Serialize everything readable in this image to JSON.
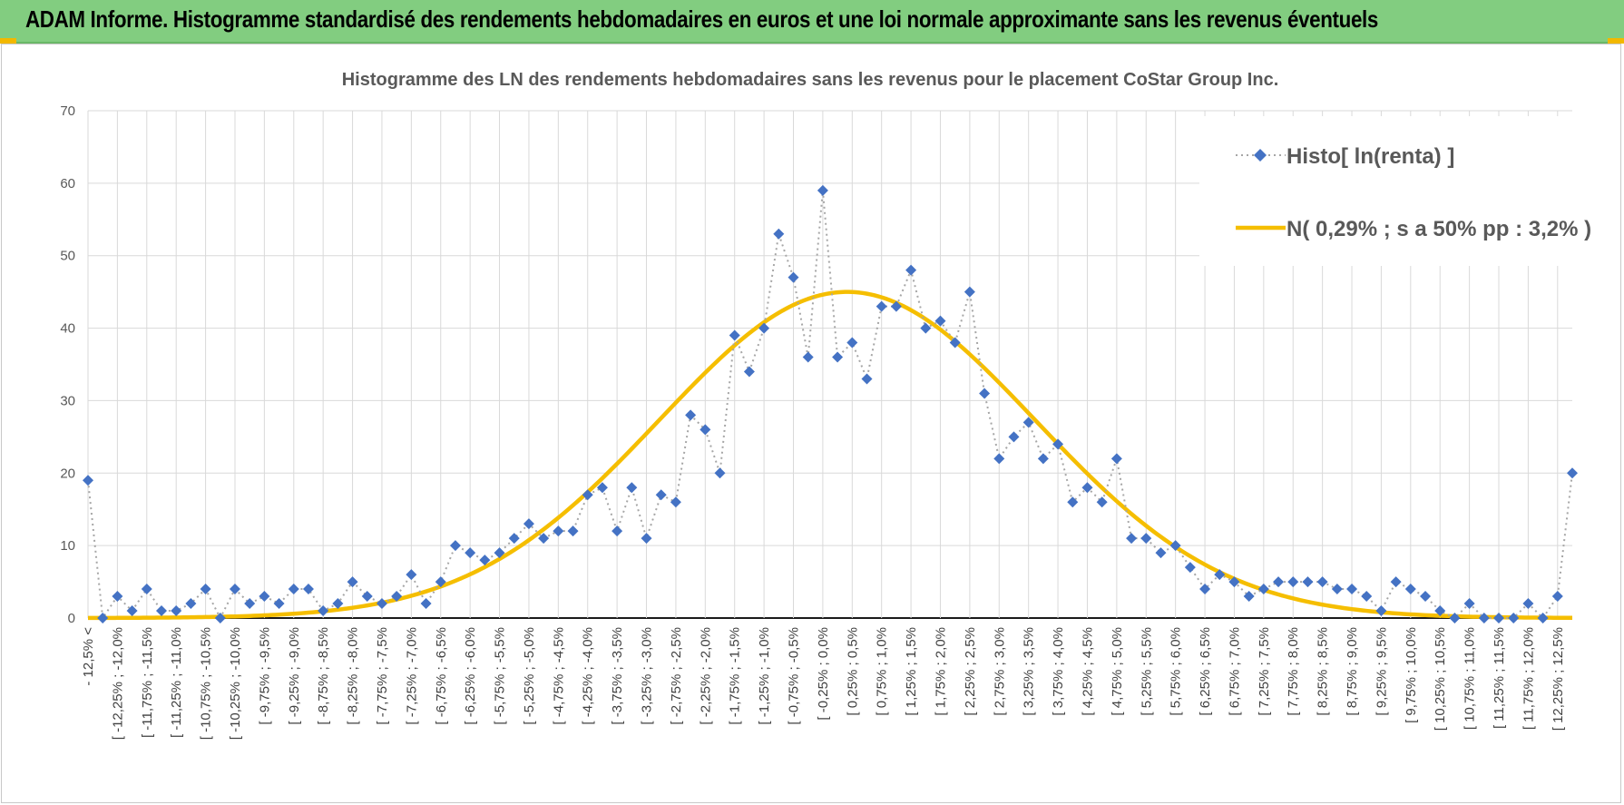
{
  "banner": {
    "title": "ADAM Informe. Histogramme standardisé des rendements hebdomadaires en euros et une loi normale approximante sans les revenus éventuels",
    "background": "#82cd80",
    "accent": "#f2b800"
  },
  "chart_data": {
    "type": "line",
    "title": "Histogramme  des LN des rendements  hebdomadaires  sans les  revenus  pour le placement CoStar Group Inc.",
    "xlabel": "",
    "ylabel": "",
    "ylim": [
      0,
      70
    ],
    "yticks": [
      0,
      10,
      20,
      30,
      40,
      50,
      60,
      70
    ],
    "grid": true,
    "legend_position": "top-right",
    "categories": [
      "- 12,5% <",
      "[ -12,5% ; -12,25% ]",
      "[ -12,25% ; -12,0%",
      "[ -12,0% ; -11,75% ]",
      "[ -11,75% ; -11,5%",
      "[ -11,5% ; -11,25% ]",
      "[ -11,25% ; -11,0%",
      "[ -11,0% ; -10,75% ]",
      "[ -10,75% ; -10,5%",
      "[ -10,5% ; -10,25% ]",
      "[ -10,25% ; -10,0%",
      "[ -10,0% ; -9,75% ]",
      "[ -9,75% ; -9,5%",
      "[ -9,5% ; -9,25% ]",
      "[ -9,25% ; -9,0%",
      "[ -9,0% ; -8,75% ]",
      "[ -8,75% ; -8,5%",
      "[ -8,5% ; -8,25% ]",
      "[ -8,25% ; -8,0%",
      "[ -8,0% ; -7,75% ]",
      "[ -7,75% ; -7,5%",
      "[ -7,5% ; -7,25% ]",
      "[ -7,25% ; -7,0%",
      "[ -7,0% ; -6,75% ]",
      "[ -6,75% ; -6,5%",
      "[ -6,5% ; -6,25% ]",
      "[ -6,25% ; -6,0%",
      "[ -6,0% ; -5,75% ]",
      "[ -5,75% ; -5,5%",
      "[ -5,5% ; -5,25% ]",
      "[ -5,25% ; -5,0%",
      "[ -5,0% ; -4,75% ]",
      "[ -4,75% ; -4,5%",
      "[ -4,5% ; -4,25% ]",
      "[ -4,25% ; -4,0%",
      "[ -4,0% ; -3,75% ]",
      "[ -3,75% ; -3,5%",
      "[ -3,5% ; -3,25% ]",
      "[ -3,25% ; -3,0%",
      "[ -3,0% ; -2,75% ]",
      "[ -2,75% ; -2,5%",
      "[ -2,5% ; -2,25% ]",
      "[ -2,25% ; -2,0%",
      "[ -2,0% ; -1,75% ]",
      "[ -1,75% ; -1,5%",
      "[ -1,5% ; -1,25% ]",
      "[ -1,25% ; -1,0%",
      "[ -1,0% ; -0,75% ]",
      "[ -0,75% ; -0,5%",
      "[ -0,5% ; -0,25% ]",
      "[ -0,25% ; 0,0%",
      "[ 0,0% ; 0,25% ]",
      "[ 0,25% ; 0,5%",
      "[ 0,5% ; 0,75% ]",
      "[ 0,75% ; 1,0%",
      "[ 1,0% ; 1,25% ]",
      "[ 1,25% ; 1,5%",
      "[ 1,5% ; 1,75% ]",
      "[ 1,75% ; 2,0%",
      "[ 2,0% ; 2,25% ]",
      "[ 2,25% ; 2,5%",
      "[ 2,5% ; 2,75% ]",
      "[ 2,75% ; 3,0%",
      "[ 3,0% ; 3,25% ]",
      "[ 3,25% ; 3,5%",
      "[ 3,5% ; 3,75% ]",
      "[ 3,75% ; 4,0%",
      "[ 4,0% ; 4,25% ]",
      "[ 4,25% ; 4,5%",
      "[ 4,5% ; 4,75% ]",
      "[ 4,75% ; 5,0%",
      "[ 5,0% ; 5,25% ]",
      "[ 5,25% ; 5,5%",
      "[ 5,5% ; 5,75% ]",
      "[ 5,75% ; 6,0%",
      "[ 6,0% ; 6,25% ]",
      "[ 6,25% ; 6,5%",
      "[ 6,5% ; 6,75% ]",
      "[ 6,75% ; 7,0%",
      "[ 7,0% ; 7,25% ]",
      "[ 7,25% ; 7,5%",
      "[ 7,5% ; 7,75% ]",
      "[ 7,75% ; 8,0%",
      "[ 8,0% ; 8,25% ]",
      "[ 8,25% ; 8,5%",
      "[ 8,5% ; 8,75% ]",
      "[ 8,75% ; 9,0%",
      "[ 9,0% ; 9,25% ]",
      "[ 9,25% ; 9,5%",
      "[ 9,5% ; 9,75% ]",
      "[ 9,75% ; 10,0%",
      "[ 10,0% ; 10,25% ]",
      "[ 10,25% ; 10,5%",
      "[ 10,5% ; 10,75% ]",
      "[ 10,75% ; 11,0%",
      "[ 11,0% ; 11,25% ]",
      "[ 11,25% ; 11,5%",
      "[ 11,5% ; 11,75% ]",
      "[ 11,75% ; 12,0%",
      "[ 12,0% ; 12,25% ]",
      "[ 12,25% ; 12,5%",
      "12,5% <"
    ],
    "series": [
      {
        "name": "Histo[ ln(renta) ]",
        "style": "dotted-line-with-diamond-markers",
        "color": "#4472c4",
        "line_color": "#a6a6a6",
        "values": [
          19,
          0,
          3,
          1,
          4,
          1,
          1,
          2,
          4,
          0,
          4,
          2,
          3,
          2,
          4,
          4,
          1,
          2,
          5,
          3,
          2,
          3,
          6,
          2,
          5,
          10,
          9,
          8,
          9,
          11,
          13,
          11,
          12,
          12,
          17,
          18,
          12,
          18,
          11,
          17,
          16,
          28,
          26,
          20,
          39,
          34,
          40,
          53,
          47,
          36,
          59,
          36,
          38,
          33,
          43,
          43,
          48,
          40,
          41,
          38,
          45,
          31,
          22,
          25,
          27,
          22,
          24,
          16,
          18,
          16,
          22,
          11,
          11,
          9,
          10,
          7,
          4,
          6,
          5,
          3,
          4,
          5,
          5,
          5,
          5,
          4,
          4,
          3,
          1,
          5,
          4,
          3,
          1,
          0,
          2,
          0,
          0,
          0,
          2,
          0,
          3,
          20
        ]
      },
      {
        "name": "N( 0,29% ; s a 50% pp : 3,2% )",
        "style": "smooth-line",
        "color": "#f5be00",
        "mean_pct": 0.29,
        "sd_pct": 3.2,
        "peak": 45
      }
    ]
  }
}
